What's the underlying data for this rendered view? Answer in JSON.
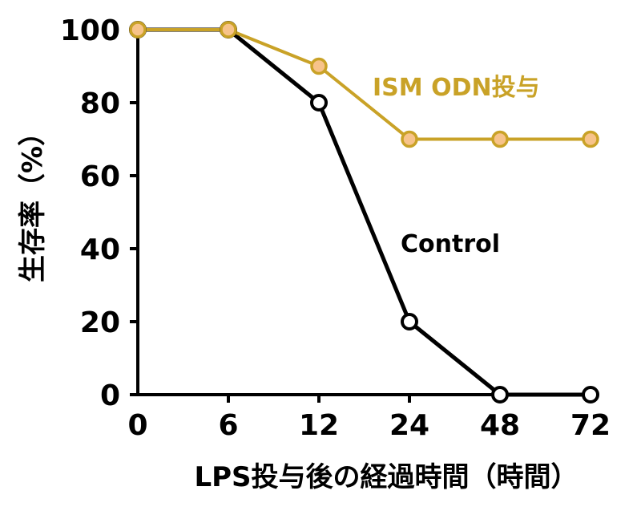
{
  "chart_data": {
    "type": "line",
    "categories": [
      "0",
      "6",
      "12",
      "24",
      "48",
      "72"
    ],
    "xlabel": "LPS投与後の経過時間（時間）",
    "ylabel": "生存率（%）",
    "ylim": [
      0,
      100
    ],
    "yticks": [
      "0",
      "20",
      "40",
      "60",
      "80",
      "100"
    ],
    "grid": false,
    "series": [
      {
        "name": "ISM ODN投与",
        "values": [
          100,
          100,
          90,
          70,
          70,
          70
        ],
        "line_color": "#C9A227",
        "marker_fill": "#F7C38A",
        "marker_stroke": "#C9A227"
      },
      {
        "name": "Control",
        "values": [
          100,
          100,
          80,
          20,
          0,
          0
        ],
        "line_color": "#000000",
        "marker_fill": "#FFFFFF",
        "marker_stroke": "#000000"
      }
    ]
  }
}
